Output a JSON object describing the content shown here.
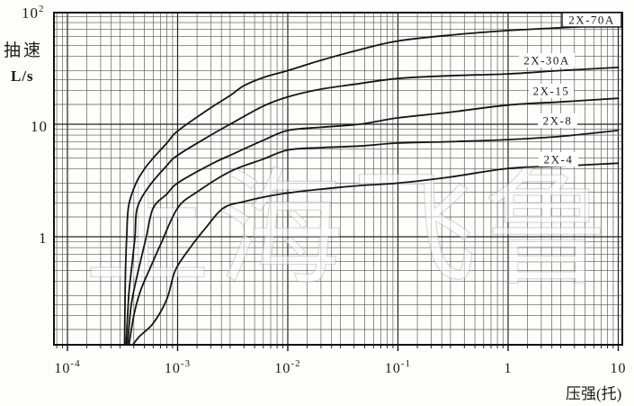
{
  "chart_data": {
    "type": "line",
    "title": "",
    "xlabel": "压强(托)",
    "ylabel_line1": "抽速",
    "ylabel_line2": "L/s",
    "x_scale": "log",
    "y_scale": "log",
    "xlim": [
      0.0001,
      10
    ],
    "ylim": [
      0.1,
      100
    ],
    "grid": {
      "on": true,
      "style": "full log-log graph paper, major and minor lines",
      "minor_multiples": [
        1.5,
        2,
        2.5,
        3,
        4,
        5,
        6,
        7,
        8,
        9
      ]
    },
    "x_ticks": [
      {
        "base": "10",
        "exp": "-4",
        "value": 0.0001
      },
      {
        "base": "10",
        "exp": "-3",
        "value": 0.001
      },
      {
        "base": "10",
        "exp": "-2",
        "value": 0.01
      },
      {
        "base": "10",
        "exp": "-1",
        "value": 0.1
      },
      {
        "base": "1",
        "exp": "",
        "value": 1
      },
      {
        "base": "10",
        "exp": "",
        "value": 10
      }
    ],
    "y_ticks": [
      {
        "base": "10",
        "exp": "2",
        "value": 100
      },
      {
        "base": "10",
        "exp": "",
        "value": 10
      },
      {
        "base": "1",
        "exp": "",
        "value": 1
      }
    ],
    "legend_position": "labels inline at right of curves",
    "series": [
      {
        "name": "2X-70A",
        "label": "2X-70A",
        "boxed_label": true,
        "points": [
          [
            0.00033,
            0.105
          ],
          [
            0.000335,
            0.4
          ],
          [
            0.000345,
            1.0
          ],
          [
            0.00036,
            1.9
          ],
          [
            0.00042,
            3.0
          ],
          [
            0.0005,
            4.0
          ],
          [
            0.0006,
            5.0
          ],
          [
            0.0008,
            6.8
          ],
          [
            0.001,
            8.7
          ],
          [
            0.002,
            14
          ],
          [
            0.003,
            18
          ],
          [
            0.004,
            22
          ],
          [
            0.006,
            26
          ],
          [
            0.01,
            30
          ],
          [
            0.02,
            37
          ],
          [
            0.045,
            46
          ],
          [
            0.1,
            55
          ],
          [
            0.3,
            62
          ],
          [
            1,
            68
          ],
          [
            3,
            72
          ],
          [
            10,
            76
          ]
        ]
      },
      {
        "name": "2X-30A",
        "label": "2X-30A",
        "boxed_label": false,
        "points": [
          [
            0.00034,
            0.105
          ],
          [
            0.00036,
            0.3
          ],
          [
            0.00038,
            0.5
          ],
          [
            0.00041,
            1.0
          ],
          [
            0.00043,
            1.8
          ],
          [
            0.00055,
            2.8
          ],
          [
            0.0008,
            4.3
          ],
          [
            0.001,
            5.3
          ],
          [
            0.002,
            8.0
          ],
          [
            0.003,
            10
          ],
          [
            0.006,
            14.5
          ],
          [
            0.01,
            17.5
          ],
          [
            0.02,
            20.5
          ],
          [
            0.045,
            23
          ],
          [
            0.1,
            25.5
          ],
          [
            0.3,
            27
          ],
          [
            1,
            28
          ],
          [
            3,
            30
          ],
          [
            10,
            32
          ]
        ]
      },
      {
        "name": "2X-15",
        "label": "2X-15",
        "boxed_label": false,
        "points": [
          [
            0.00035,
            0.105
          ],
          [
            0.00038,
            0.25
          ],
          [
            0.00044,
            0.5
          ],
          [
            0.00052,
            1.0
          ],
          [
            0.0006,
            1.8
          ],
          [
            0.0008,
            2.4
          ],
          [
            0.001,
            3.0
          ],
          [
            0.002,
            4.4
          ],
          [
            0.003,
            5.3
          ],
          [
            0.006,
            7.2
          ],
          [
            0.01,
            8.8
          ],
          [
            0.02,
            9.4
          ],
          [
            0.045,
            10
          ],
          [
            0.1,
            11.4
          ],
          [
            0.3,
            12.8
          ],
          [
            1,
            14.8
          ],
          [
            3,
            15.8
          ],
          [
            10,
            17
          ]
        ]
      },
      {
        "name": "2X-8",
        "label": "2X-8",
        "boxed_label": false,
        "points": [
          [
            0.00036,
            0.105
          ],
          [
            0.0004,
            0.2
          ],
          [
            0.00046,
            0.33
          ],
          [
            0.00055,
            0.5
          ],
          [
            0.0007,
            0.85
          ],
          [
            0.001,
            1.8
          ],
          [
            0.0015,
            2.5
          ],
          [
            0.003,
            3.8
          ],
          [
            0.006,
            4.9
          ],
          [
            0.01,
            5.9
          ],
          [
            0.02,
            6.2
          ],
          [
            0.045,
            6.4
          ],
          [
            0.1,
            6.8
          ],
          [
            0.3,
            7.0
          ],
          [
            1,
            7.3
          ],
          [
            3,
            7.8
          ],
          [
            10,
            8.8
          ]
        ]
      },
      {
        "name": "2X-4",
        "label": "2X-4",
        "boxed_label": false,
        "points": [
          [
            0.00038,
            0.105
          ],
          [
            0.00045,
            0.13
          ],
          [
            0.0006,
            0.17
          ],
          [
            0.0008,
            0.28
          ],
          [
            0.00095,
            0.5
          ],
          [
            0.0013,
            0.8
          ],
          [
            0.0018,
            1.2
          ],
          [
            0.0026,
            1.8
          ],
          [
            0.004,
            2.05
          ],
          [
            0.006,
            2.25
          ],
          [
            0.01,
            2.45
          ],
          [
            0.02,
            2.65
          ],
          [
            0.045,
            2.85
          ],
          [
            0.1,
            3.0
          ],
          [
            0.3,
            3.4
          ],
          [
            1,
            4.05
          ],
          [
            3,
            4.25
          ],
          [
            10,
            4.5
          ]
        ]
      }
    ],
    "colors": {
      "background": "#fdfdfc",
      "frame": "#111111",
      "grid_major": "#222222",
      "grid_minor": "#555555",
      "curve": "#151515",
      "text": "#1b1b1b"
    }
  },
  "watermark": {
    "text": "上海飞鲁",
    "style": "very faint outlined characters behind curves"
  }
}
